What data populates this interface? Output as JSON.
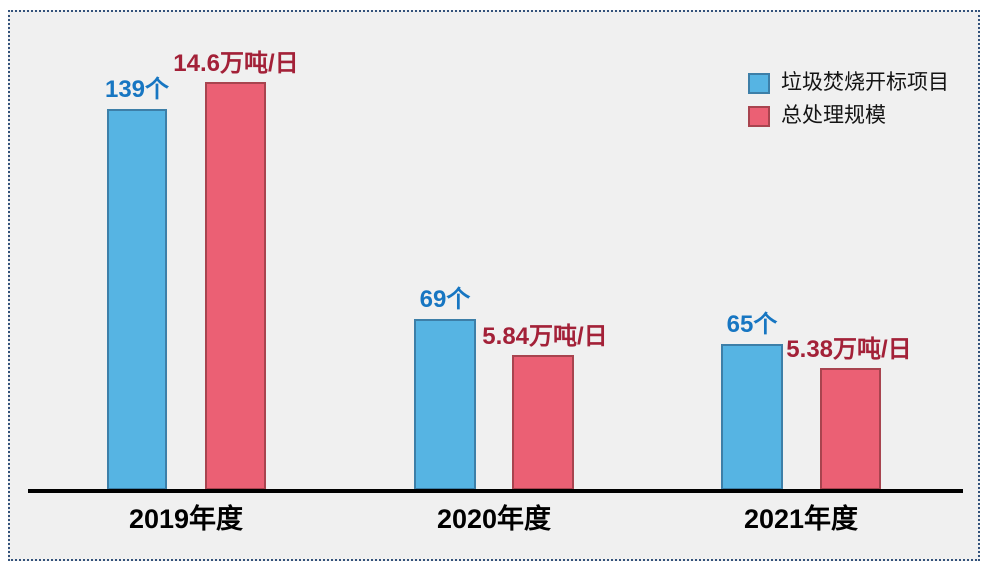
{
  "chart_data": {
    "type": "bar",
    "title": "",
    "categories": [
      "2019年度",
      "2020年度",
      "2021年度"
    ],
    "series": [
      {
        "name": "垃圾焚烧开标项目",
        "unit": "个",
        "values": [
          139,
          69,
          65
        ],
        "labels": [
          "139个",
          "69个",
          "65个"
        ],
        "bar_color": "#56B4E3",
        "bar_border_color": "#3D7FA8",
        "label_color": "#1776C2"
      },
      {
        "name": "总处理规模",
        "unit": "万吨/日",
        "values": [
          14.6,
          5.84,
          5.38
        ],
        "labels": [
          "14.6万吨/日",
          "5.84万吨/日",
          "5.38万吨/日"
        ],
        "bar_color": "#EB6074",
        "bar_border_color": "#A8444F",
        "label_color": "#A32138"
      }
    ],
    "legend_position": "top-right",
    "grid": false,
    "y_axis_visible": false,
    "x_axis_line_color": "#000000",
    "background_color": "#F0F0F0",
    "frame_border_color": "#33527B",
    "category_label_color": "#000000"
  }
}
